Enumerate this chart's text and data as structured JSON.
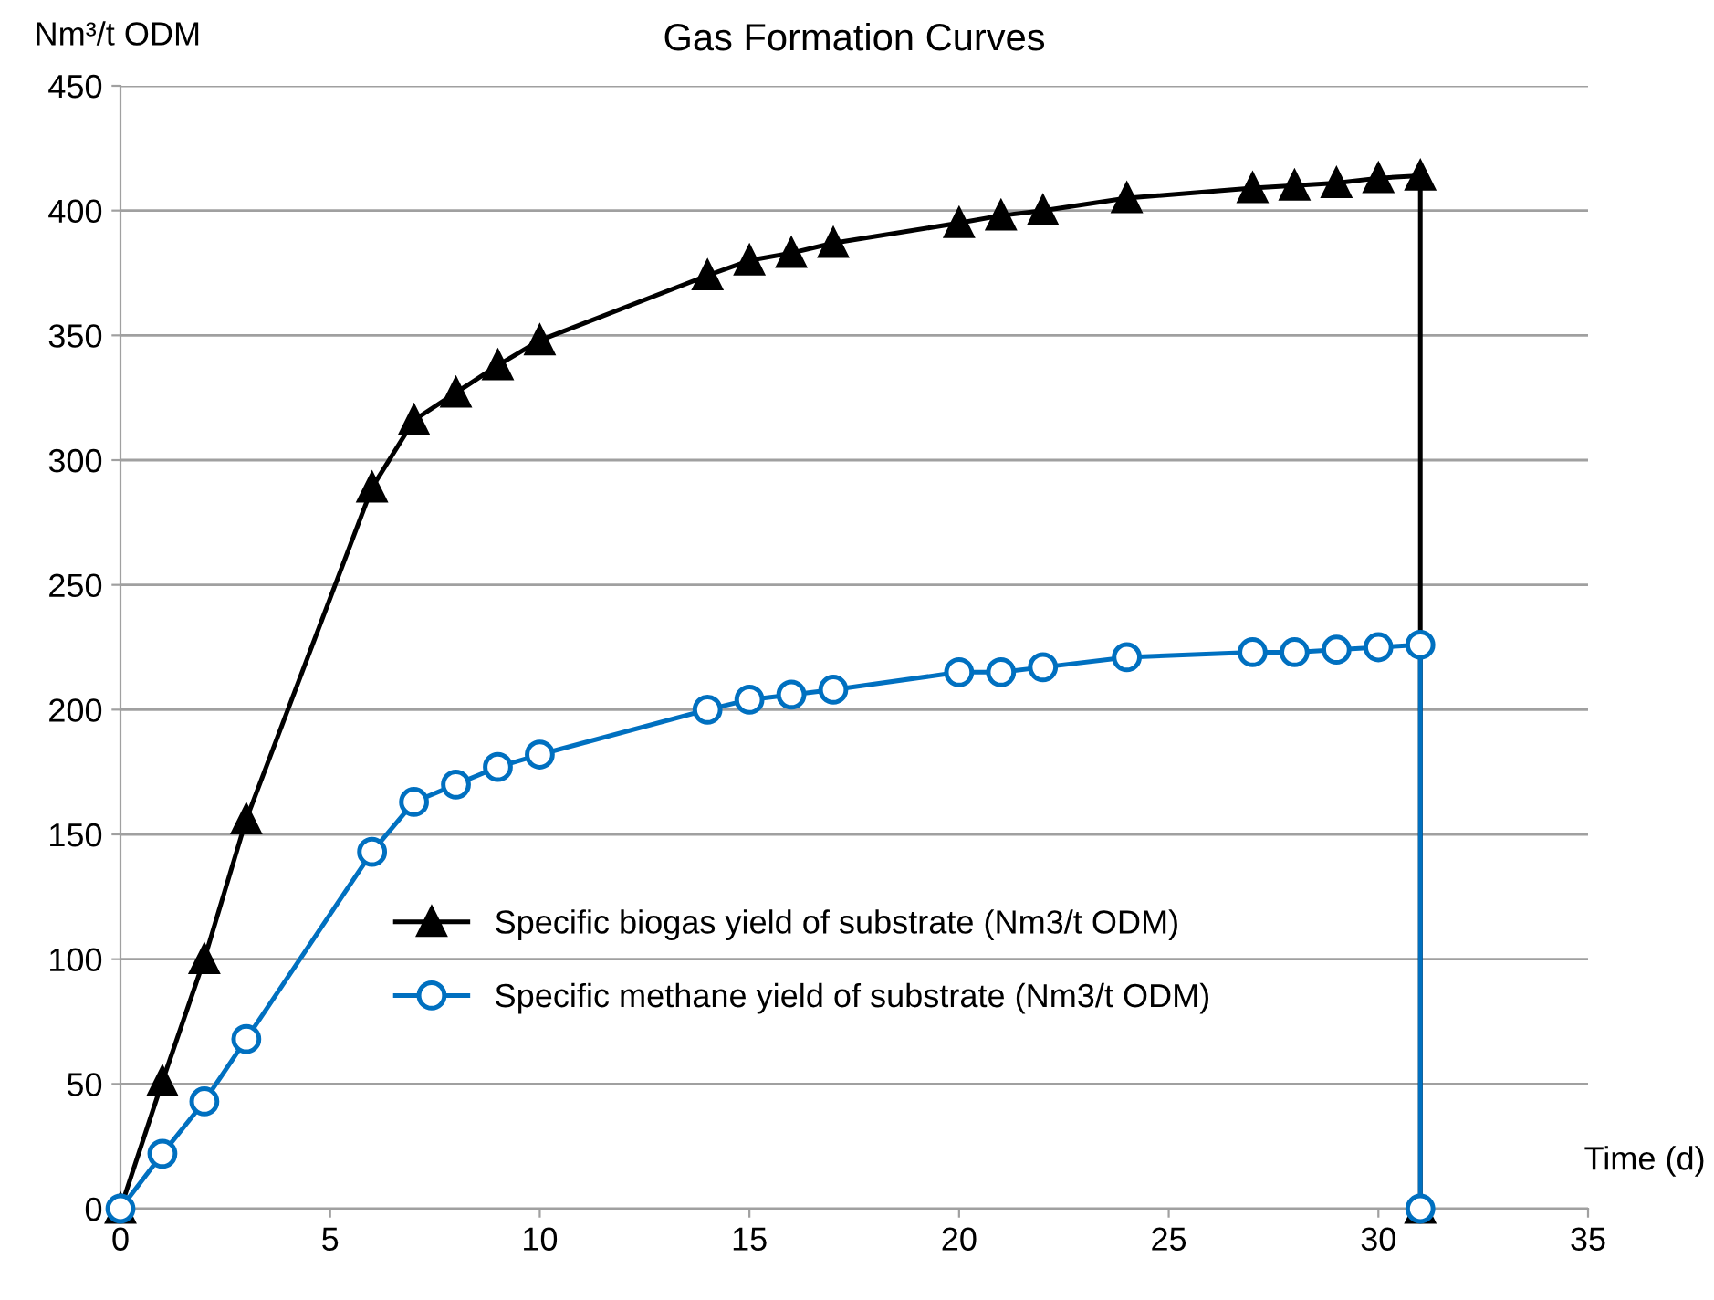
{
  "chart_data": {
    "type": "line",
    "title": "Gas Formation Curves",
    "xlabel": "Time (d)",
    "ylabel": "Nm³/t ODM",
    "xlim": [
      0,
      35
    ],
    "xticks": [
      0,
      5,
      10,
      15,
      20,
      25,
      30,
      35
    ],
    "ylim": [
      0,
      450
    ],
    "yticks": [
      0,
      50,
      100,
      150,
      200,
      250,
      300,
      350,
      400,
      450
    ],
    "grid": "y",
    "legend": "center",
    "line_style": "solid",
    "series": [
      {
        "name": "Specific biogas yield of substrate (Nm3/t ODM)",
        "color": "#000000",
        "marker": "triangle",
        "x": [
          0,
          1,
          2,
          3,
          6,
          7,
          8,
          9,
          10,
          14,
          15,
          16,
          17,
          20,
          21,
          22,
          24,
          27,
          28,
          29,
          30,
          31,
          31
        ],
        "values": [
          0,
          51,
          100,
          156,
          289,
          316,
          327,
          338,
          348,
          374,
          380,
          383,
          387,
          395,
          398,
          400,
          405,
          409,
          410,
          411,
          413,
          414,
          0
        ]
      },
      {
        "name": "Specific methane yield of substrate (Nm3/t ODM)",
        "color": "#0070c0",
        "marker": "circle",
        "x": [
          0,
          1,
          2,
          3,
          6,
          7,
          8,
          9,
          10,
          14,
          15,
          16,
          17,
          20,
          21,
          22,
          24,
          27,
          28,
          29,
          30,
          31,
          31
        ],
        "values": [
          0,
          22,
          43,
          68,
          143,
          163,
          170,
          177,
          182,
          200,
          204,
          206,
          208,
          215,
          215,
          217,
          221,
          223,
          223,
          224,
          225,
          226,
          0
        ]
      }
    ]
  }
}
